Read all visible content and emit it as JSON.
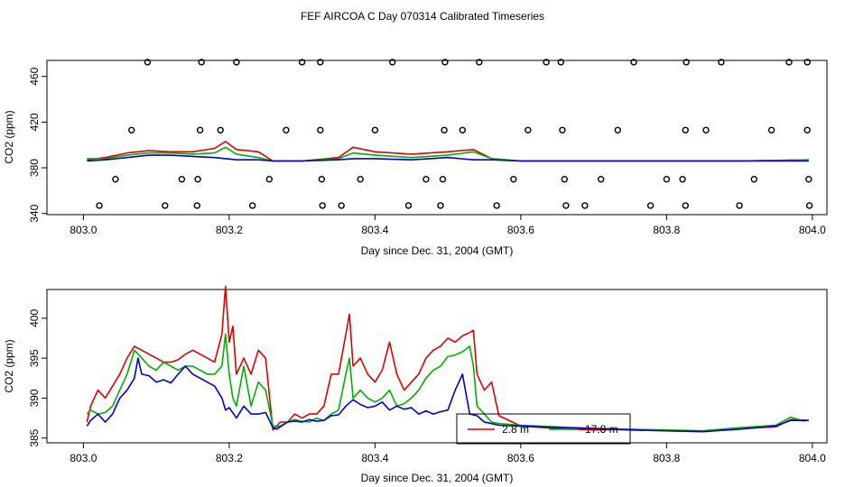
{
  "chart_data": [
    {
      "type": "line",
      "title": "FEF AIRCOA C  Day 070314  Calibrated Timeseries",
      "xlabel": "Day since Dec. 31, 2004 (GMT)",
      "ylabel": "CO2 (ppm)",
      "xlim": [
        802.95,
        804.02
      ],
      "ylim": [
        339,
        474
      ],
      "xticks": [
        803.0,
        803.2,
        803.4,
        803.6,
        803.8,
        804.0
      ],
      "xtick_labels": [
        "803.0",
        "803.2",
        "803.4",
        "803.6",
        "803.8",
        "804.0"
      ],
      "yticks": [
        340,
        380,
        420,
        460
      ],
      "ytick_labels": [
        "340",
        "380",
        "420",
        "460"
      ],
      "series": [
        {
          "name": "2.8 m",
          "color": "#e00000",
          "x": [
            803.005,
            803.03,
            803.06,
            803.09,
            803.12,
            803.15,
            803.18,
            803.195,
            803.21,
            803.24,
            803.26,
            803.3,
            803.35,
            803.37,
            803.4,
            803.45,
            803.5,
            803.535,
            803.56,
            803.6,
            803.7,
            803.8,
            803.9,
            803.995
          ],
          "y": [
            387,
            389,
            393,
            395,
            394,
            394,
            397,
            403,
            396,
            394,
            386,
            386,
            389,
            398,
            394,
            392,
            394,
            396,
            388,
            386,
            386,
            386,
            386,
            387
          ]
        },
        {
          "name": "17.8 m",
          "color": "#00b000",
          "x": [
            803.005,
            803.03,
            803.06,
            803.09,
            803.12,
            803.15,
            803.18,
            803.195,
            803.21,
            803.24,
            803.26,
            803.3,
            803.35,
            803.37,
            803.4,
            803.45,
            803.5,
            803.535,
            803.56,
            803.6,
            803.7,
            803.8,
            803.9,
            803.995
          ],
          "y": [
            388,
            388,
            391,
            393,
            393,
            392,
            393,
            398,
            392,
            389,
            386,
            386,
            388,
            393,
            391,
            389,
            391,
            394,
            388,
            386,
            386,
            386,
            386,
            387
          ]
        },
        {
          "name": "blue",
          "color": "#0000c8",
          "x": [
            803.005,
            803.03,
            803.06,
            803.09,
            803.12,
            803.15,
            803.18,
            803.195,
            803.21,
            803.24,
            803.26,
            803.3,
            803.35,
            803.37,
            803.4,
            803.45,
            803.5,
            803.535,
            803.56,
            803.6,
            803.7,
            803.8,
            803.9,
            803.995
          ],
          "y": [
            386,
            387,
            389,
            391,
            391,
            390,
            389,
            388,
            387,
            387,
            386,
            386,
            387,
            388,
            388,
            387,
            389,
            387,
            387,
            386,
            386,
            386,
            386,
            386
          ]
        }
      ],
      "markers": [
        {
          "x": 803.088,
          "y": 472.5
        },
        {
          "x": 803.162,
          "y": 472.5
        },
        {
          "x": 803.21,
          "y": 472.5
        },
        {
          "x": 803.3,
          "y": 472.5
        },
        {
          "x": 803.325,
          "y": 472.5
        },
        {
          "x": 803.424,
          "y": 472.5
        },
        {
          "x": 803.496,
          "y": 472.5
        },
        {
          "x": 803.543,
          "y": 472.5
        },
        {
          "x": 803.635,
          "y": 472.5
        },
        {
          "x": 803.655,
          "y": 472.5
        },
        {
          "x": 803.755,
          "y": 472.5
        },
        {
          "x": 803.827,
          "y": 472.5
        },
        {
          "x": 803.875,
          "y": 472.5
        },
        {
          "x": 803.968,
          "y": 472.5
        },
        {
          "x": 803.993,
          "y": 472.5
        },
        {
          "x": 803.066,
          "y": 413
        },
        {
          "x": 803.16,
          "y": 413
        },
        {
          "x": 803.188,
          "y": 413
        },
        {
          "x": 803.278,
          "y": 413
        },
        {
          "x": 803.325,
          "y": 413
        },
        {
          "x": 803.4,
          "y": 413
        },
        {
          "x": 803.495,
          "y": 413
        },
        {
          "x": 803.52,
          "y": 413
        },
        {
          "x": 803.61,
          "y": 413
        },
        {
          "x": 803.657,
          "y": 413
        },
        {
          "x": 803.733,
          "y": 413
        },
        {
          "x": 803.826,
          "y": 413
        },
        {
          "x": 803.854,
          "y": 413
        },
        {
          "x": 803.944,
          "y": 413
        },
        {
          "x": 803.993,
          "y": 413
        },
        {
          "x": 803.044,
          "y": 370
        },
        {
          "x": 803.135,
          "y": 370
        },
        {
          "x": 803.157,
          "y": 370
        },
        {
          "x": 803.255,
          "y": 370
        },
        {
          "x": 803.327,
          "y": 370
        },
        {
          "x": 803.38,
          "y": 370
        },
        {
          "x": 803.47,
          "y": 370
        },
        {
          "x": 803.493,
          "y": 370
        },
        {
          "x": 803.59,
          "y": 370
        },
        {
          "x": 803.66,
          "y": 370
        },
        {
          "x": 803.71,
          "y": 370
        },
        {
          "x": 803.8,
          "y": 370
        },
        {
          "x": 803.822,
          "y": 370
        },
        {
          "x": 803.92,
          "y": 370
        },
        {
          "x": 803.995,
          "y": 370
        },
        {
          "x": 803.022,
          "y": 347
        },
        {
          "x": 803.112,
          "y": 347
        },
        {
          "x": 803.156,
          "y": 347
        },
        {
          "x": 803.232,
          "y": 347
        },
        {
          "x": 803.328,
          "y": 347
        },
        {
          "x": 803.354,
          "y": 347
        },
        {
          "x": 803.446,
          "y": 347
        },
        {
          "x": 803.49,
          "y": 347
        },
        {
          "x": 803.567,
          "y": 347
        },
        {
          "x": 803.662,
          "y": 347
        },
        {
          "x": 803.688,
          "y": 347
        },
        {
          "x": 803.778,
          "y": 347
        },
        {
          "x": 803.826,
          "y": 347
        },
        {
          "x": 803.9,
          "y": 347
        },
        {
          "x": 803.996,
          "y": 347
        }
      ]
    },
    {
      "type": "line",
      "xlabel": "Day since Dec. 31, 2004 (GMT)",
      "ylabel": "CO2 (ppm)",
      "xlim": [
        802.95,
        804.02
      ],
      "ylim": [
        384.4,
        403.6
      ],
      "xticks": [
        803.0,
        803.2,
        803.4,
        803.6,
        803.8,
        804.0
      ],
      "xtick_labels": [
        "803.0",
        "803.2",
        "803.4",
        "803.6",
        "803.8",
        "804.0"
      ],
      "yticks": [
        385,
        390,
        395,
        400
      ],
      "ytick_labels": [
        "385",
        "390",
        "395",
        "400"
      ],
      "legend": {
        "position": "bottom-center",
        "entries": [
          "2.8 m",
          "17.8 m"
        ]
      },
      "series": [
        {
          "name": "2.8 m",
          "color": "#e00000",
          "x": [
            803.005,
            803.01,
            803.02,
            803.03,
            803.04,
            803.05,
            803.06,
            803.07,
            803.08,
            803.09,
            803.1,
            803.11,
            803.12,
            803.13,
            803.14,
            803.15,
            803.16,
            803.17,
            803.18,
            803.19,
            803.195,
            803.2,
            803.205,
            803.21,
            803.22,
            803.23,
            803.24,
            803.25,
            803.26,
            803.265,
            803.27,
            803.28,
            803.29,
            803.3,
            803.31,
            803.32,
            803.33,
            803.34,
            803.35,
            803.36,
            803.365,
            803.37,
            803.38,
            803.39,
            803.4,
            803.41,
            803.42,
            803.43,
            803.44,
            803.45,
            803.46,
            803.47,
            803.48,
            803.49,
            803.5,
            803.51,
            803.52,
            803.53,
            803.535,
            803.54,
            803.55,
            803.56,
            803.57,
            803.6,
            803.65,
            803.7,
            803.75,
            803.8,
            803.85,
            803.9,
            803.95,
            803.97,
            803.995
          ],
          "y": [
            387,
            389,
            391,
            390,
            391.5,
            393,
            395,
            396.5,
            396,
            395.5,
            395,
            394.5,
            394.5,
            394.8,
            395.5,
            396,
            395.5,
            395,
            394.5,
            398,
            404,
            397,
            399,
            393,
            395,
            393,
            396,
            395,
            386,
            386.5,
            387,
            387,
            388,
            387.5,
            388,
            388,
            389,
            393,
            393,
            398,
            400.5,
            394,
            395,
            393,
            392,
            393.5,
            397,
            393,
            391,
            392,
            393,
            395,
            396,
            396.5,
            397.5,
            397,
            397.8,
            398.2,
            398.5,
            393,
            391,
            392,
            387.8,
            386.5,
            386.2,
            386,
            386.1,
            385.9,
            385.8,
            386.2,
            386.4,
            387.3,
            387.2
          ]
        },
        {
          "name": "17.8 m",
          "color": "#00b000",
          "x": [
            803.005,
            803.01,
            803.02,
            803.03,
            803.04,
            803.05,
            803.06,
            803.07,
            803.08,
            803.09,
            803.1,
            803.11,
            803.12,
            803.13,
            803.14,
            803.15,
            803.16,
            803.17,
            803.18,
            803.19,
            803.195,
            803.2,
            803.205,
            803.21,
            803.22,
            803.23,
            803.24,
            803.25,
            803.26,
            803.265,
            803.27,
            803.28,
            803.29,
            803.3,
            803.31,
            803.32,
            803.33,
            803.34,
            803.35,
            803.36,
            803.365,
            803.37,
            803.38,
            803.39,
            803.4,
            803.41,
            803.42,
            803.43,
            803.44,
            803.45,
            803.46,
            803.47,
            803.48,
            803.49,
            803.5,
            803.51,
            803.52,
            803.53,
            803.535,
            803.54,
            803.55,
            803.56,
            803.57,
            803.6,
            803.65,
            803.7,
            803.75,
            803.8,
            803.85,
            803.9,
            803.95,
            803.97,
            803.99
          ],
          "y": [
            388,
            388.5,
            388,
            388.2,
            389,
            391,
            393,
            396,
            395,
            394,
            393.5,
            394.5,
            394,
            393.5,
            394,
            394,
            393.5,
            393,
            393,
            394,
            398,
            393,
            390,
            389,
            394,
            389,
            392,
            391,
            386.5,
            386.4,
            386.5,
            387,
            387.3,
            387.1,
            387,
            387.5,
            387.2,
            388,
            388.5,
            393,
            395,
            390,
            391,
            390,
            389.5,
            390,
            391,
            389,
            389.3,
            390,
            391,
            392.5,
            393.5,
            394,
            395.2,
            395.4,
            395.8,
            396.5,
            394,
            389,
            388,
            387,
            386.8,
            386.6,
            386.4,
            386.2,
            386.1,
            386,
            385.9,
            386.3,
            386.6,
            387.6,
            387.1
          ]
        },
        {
          "name": "blue",
          "color": "#0000c8",
          "x": [
            803.005,
            803.01,
            803.02,
            803.03,
            803.04,
            803.05,
            803.06,
            803.07,
            803.075,
            803.08,
            803.09,
            803.1,
            803.11,
            803.12,
            803.13,
            803.14,
            803.15,
            803.16,
            803.17,
            803.18,
            803.19,
            803.195,
            803.2,
            803.21,
            803.22,
            803.23,
            803.24,
            803.25,
            803.26,
            803.265,
            803.27,
            803.28,
            803.29,
            803.3,
            803.31,
            803.32,
            803.33,
            803.34,
            803.35,
            803.36,
            803.37,
            803.38,
            803.39,
            803.4,
            803.41,
            803.42,
            803.43,
            803.44,
            803.45,
            803.46,
            803.47,
            803.48,
            803.49,
            803.5,
            803.51,
            803.52,
            803.53,
            803.54,
            803.55,
            803.56,
            803.57,
            803.6,
            803.65,
            803.7,
            803.75,
            803.8,
            803.85,
            803.9,
            803.95,
            803.97,
            803.995
          ],
          "y": [
            386.5,
            387.2,
            388,
            387,
            388,
            390,
            391,
            392.5,
            395,
            393,
            392.8,
            392,
            392.3,
            391.9,
            393,
            394,
            393,
            392.5,
            392,
            391.5,
            390,
            388.5,
            388.8,
            387.5,
            389,
            388,
            388,
            388.2,
            386.3,
            386.1,
            386.4,
            387,
            387.1,
            387,
            387.3,
            387.1,
            387.2,
            387.8,
            387.9,
            389,
            389.8,
            389.2,
            388.8,
            389,
            389.5,
            388.5,
            389,
            388.6,
            388.8,
            388,
            388.4,
            388,
            388.3,
            388.5,
            391,
            393,
            388,
            387.8,
            387,
            386.8,
            386.6,
            386.5,
            386.3,
            386.2,
            386,
            385.9,
            385.8,
            386.1,
            386.5,
            387.2,
            387.2
          ]
        }
      ]
    }
  ]
}
